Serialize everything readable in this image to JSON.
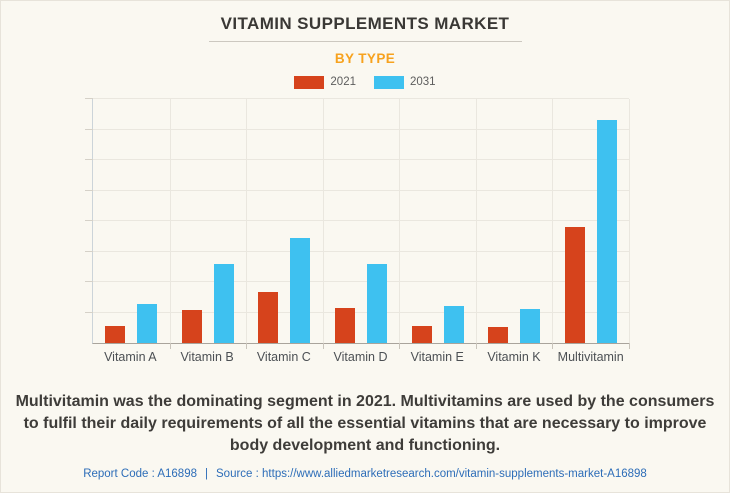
{
  "page": {
    "title": "VITAMIN SUPPLEMENTS MARKET",
    "subtitle": "BY TYPE"
  },
  "chart_data": {
    "type": "bar",
    "title": "VITAMIN SUPPLEMENTS MARKET",
    "subtitle": "BY TYPE",
    "categories": [
      "Vitamin A",
      "Vitamin B",
      "Vitamin C",
      "Vitamin D",
      "Vitamin E",
      "Vitamin K",
      "Multivitamin"
    ],
    "series": [
      {
        "name": "2021",
        "color": "#d6431c",
        "values": [
          0.57,
          1.07,
          1.66,
          1.15,
          0.57,
          0.52,
          3.79
        ]
      },
      {
        "name": "2031",
        "color": "#3ec1f0",
        "values": [
          1.28,
          2.58,
          3.43,
          2.58,
          1.2,
          1.13,
          7.32
        ]
      }
    ],
    "ylim": [
      0,
      8
    ],
    "grid_interval": 1,
    "y_axis_labels_visible": false,
    "value_units": "relative units estimated from unlabeled gridlines",
    "grid": true,
    "legend_position": "top",
    "xlabel": "",
    "ylabel": ""
  },
  "description": "Multivitamin was the dominating segment in 2021. Multivitamins are used by the consumers to fulfil their daily requirements of all the essential vitamins that are necessary to improve body development and functioning.",
  "footer": {
    "report_code_label": "Report Code : A16898",
    "separator": "|",
    "source_prefix": "Source :",
    "source_url": "https://www.alliedmarketresearch.com/vitamin-supplements-market-A16898"
  },
  "colors": {
    "background": "#faf8f1",
    "title_text": "#3a3835",
    "subtitle_accent": "#f7a21e",
    "series_2021": "#d6431c",
    "series_2031": "#3ec1f0",
    "footer_link": "#2d6db8"
  }
}
